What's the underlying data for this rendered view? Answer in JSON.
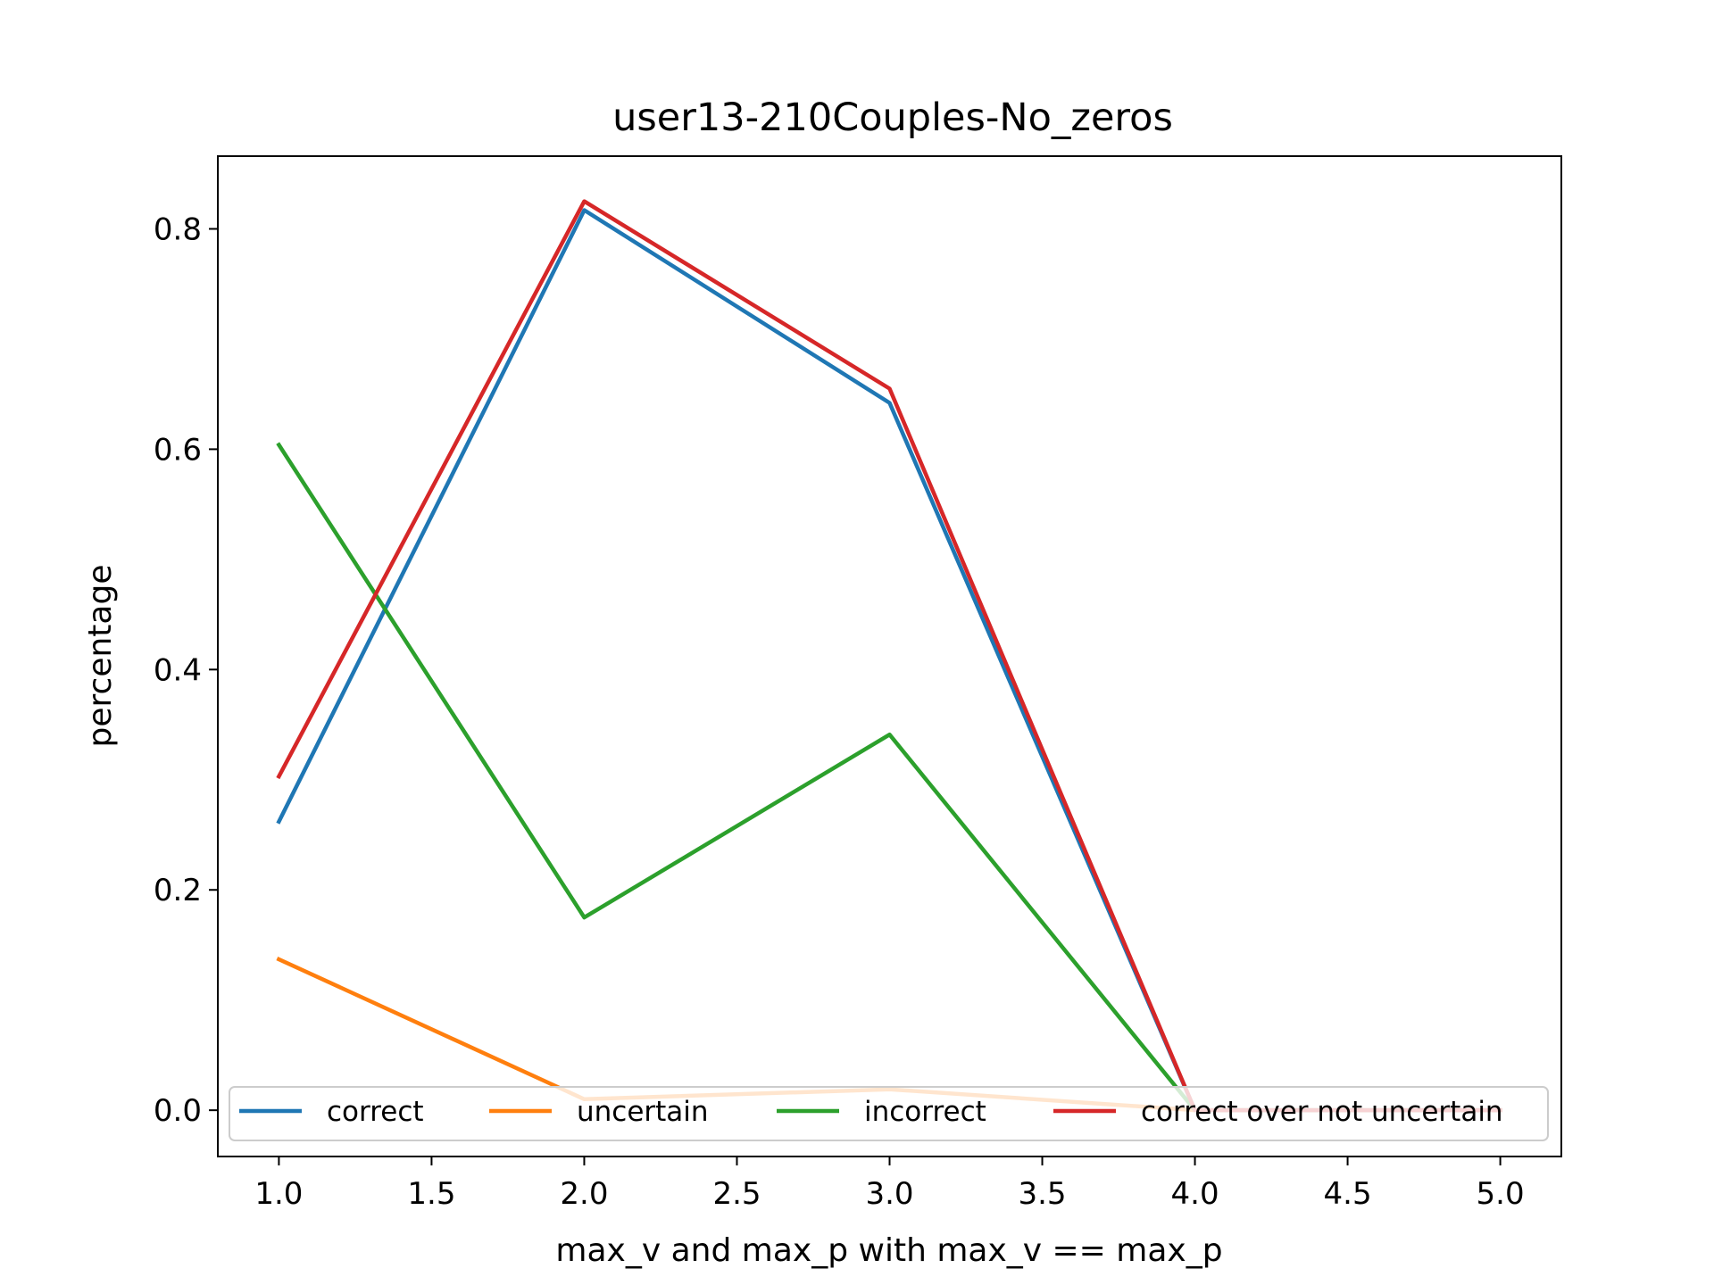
{
  "chart_data": {
    "type": "line",
    "title": "user13-210Couples-No_zeros",
    "xlabel": "max_v and max_p with max_v == max_p",
    "ylabel": "percentage",
    "xlim": [
      0.8,
      5.2
    ],
    "ylim": [
      -0.042,
      0.866
    ],
    "x_ticks": [
      1.0,
      1.5,
      2.0,
      2.5,
      3.0,
      3.5,
      4.0,
      4.5,
      5.0
    ],
    "x_tick_labels": [
      "1.0",
      "1.5",
      "2.0",
      "2.5",
      "3.0",
      "3.5",
      "4.0",
      "4.5",
      "5.0"
    ],
    "y_ticks": [
      0.0,
      0.2,
      0.4,
      0.6,
      0.8
    ],
    "y_tick_labels": [
      "0.0",
      "0.2",
      "0.4",
      "0.6",
      "0.8"
    ],
    "grid": false,
    "legend_position": "bottom (inside, 4 columns)",
    "x": [
      1,
      2,
      3,
      4,
      5
    ],
    "series": [
      {
        "name": "correct",
        "color": "#1f77b4",
        "values": [
          0.262,
          0.817,
          0.642,
          0.0,
          0.0
        ]
      },
      {
        "name": "uncertain",
        "color": "#ff7f0e",
        "values": [
          0.137,
          0.01,
          0.019,
          0.0,
          0.0
        ]
      },
      {
        "name": "incorrect",
        "color": "#2ca02c",
        "values": [
          0.604,
          0.175,
          0.341,
          0.0,
          0.0
        ]
      },
      {
        "name": "correct over not uncertain",
        "color": "#d62728",
        "values": [
          0.303,
          0.825,
          0.655,
          0.0,
          0.0
        ]
      }
    ]
  }
}
